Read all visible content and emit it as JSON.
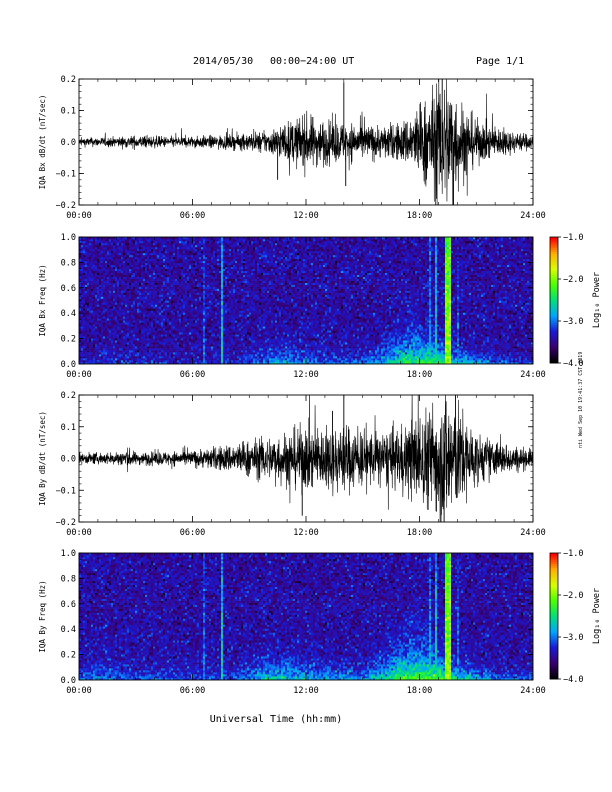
{
  "header": {
    "date_text": "2014/05/30",
    "range_text": "00:00−24:00 UT",
    "page_text": "Page 1/1"
  },
  "footer": {
    "xlabel": "Universal Time (hh:mm)",
    "side_stamp": "nti Wed Sep 10 19:41:37 CST 2019"
  },
  "colors": {
    "trace": "#000000",
    "colormap": [
      "#000000",
      "#3a0072",
      "#1a1ad6",
      "#00a6ff",
      "#00e07a",
      "#4cff00",
      "#d8ff00",
      "#ffb000",
      "#ff0000"
    ]
  },
  "chart_data": [
    {
      "type": "line",
      "title": "2014/05/30  00:00−24:00 UT",
      "ylabel": "IQA Bx dB/dt (nT/sec)",
      "xlabel": "",
      "xlim": [
        "00:00",
        "24:00"
      ],
      "ylim": [
        -0.2,
        0.2
      ],
      "x_ticks": [
        "00:00",
        "06:00",
        "12:00",
        "18:00",
        "24:00"
      ],
      "y_ticks": [
        "−0.2",
        "−0.1",
        "0.0",
        "0.1",
        "0.2"
      ],
      "y_tick_values": [
        -0.2,
        -0.1,
        0.0,
        0.1,
        0.2
      ],
      "envelope": {
        "x_hours": [
          0,
          2,
          3,
          5,
          6,
          8,
          9,
          10,
          11,
          12,
          13,
          14,
          15,
          16,
          17,
          17.5,
          18,
          18.5,
          19,
          19.5,
          20,
          21,
          22,
          23,
          24
        ],
        "amplitude": [
          0.012,
          0.014,
          0.018,
          0.015,
          0.016,
          0.02,
          0.025,
          0.032,
          0.055,
          0.075,
          0.06,
          0.055,
          0.05,
          0.045,
          0.055,
          0.075,
          0.105,
          0.13,
          0.17,
          0.2,
          0.13,
          0.06,
          0.045,
          0.03,
          0.02
        ]
      },
      "spikes": [
        {
          "x_hour": 14.0,
          "y": 0.19
        },
        {
          "x_hour": 14.1,
          "y": -0.14
        },
        {
          "x_hour": 10.5,
          "y": -0.12
        },
        {
          "x_hour": 19.2,
          "y": 0.2
        },
        {
          "x_hour": 19.8,
          "y": -0.2
        }
      ],
      "grid": false
    },
    {
      "type": "heatmap",
      "ylabel": "IQA Bx Freq (Hz)",
      "xlim": [
        "00:00",
        "24:00"
      ],
      "ylim": [
        0.0,
        1.0
      ],
      "x_ticks": [
        "00:00",
        "06:00",
        "12:00",
        "18:00",
        "24:00"
      ],
      "y_ticks": [
        "0.0",
        "0.2",
        "0.4",
        "0.6",
        "0.8",
        "1.0"
      ],
      "y_tick_values": [
        0.0,
        0.2,
        0.4,
        0.6,
        0.8,
        1.0
      ],
      "colorbar": {
        "label": "Log₁₀ Power",
        "range": [
          -4.0,
          -1.0
        ],
        "ticks": [
          "−1.0",
          "−2.0",
          "−3.0",
          "−4.0"
        ],
        "tick_values": [
          -1.0,
          -2.0,
          -3.0,
          -4.0
        ]
      },
      "background_level": -3.55,
      "low_freq_enhancement": {
        "x_hours": [
          0,
          3,
          6,
          8,
          9,
          10,
          11,
          12,
          13,
          15,
          16,
          17,
          18,
          19,
          20,
          22,
          24
        ],
        "level_at_0hz": [
          -3.3,
          -3.2,
          -3.3,
          -3.2,
          -3.05,
          -2.85,
          -2.75,
          -2.85,
          -2.95,
          -2.95,
          -2.7,
          -2.35,
          -2.25,
          -2.15,
          -2.5,
          -2.95,
          -3.1
        ],
        "decay_hz": [
          0.05,
          0.06,
          0.06,
          0.07,
          0.09,
          0.11,
          0.11,
          0.1,
          0.08,
          0.08,
          0.1,
          0.16,
          0.18,
          0.12,
          0.08,
          0.06,
          0.05
        ]
      },
      "vertical_streaks": [
        {
          "x_hour": 6.6,
          "level": -3.0
        },
        {
          "x_hour": 7.6,
          "level": -2.6
        },
        {
          "x_hour": 18.6,
          "level": -2.8
        },
        {
          "x_hour": 18.85,
          "level": -2.6
        },
        {
          "x_hour": 19.45,
          "level": -1.9
        },
        {
          "x_hour": 19.6,
          "level": -1.8
        },
        {
          "x_hour": 20.0,
          "level": -3.0
        }
      ]
    },
    {
      "type": "line",
      "ylabel": "IQA By dB/dt (nT/sec)",
      "xlim": [
        "00:00",
        "24:00"
      ],
      "ylim": [
        -0.2,
        0.2
      ],
      "x_ticks": [
        "00:00",
        "06:00",
        "12:00",
        "18:00",
        "24:00"
      ],
      "y_ticks": [
        "−0.2",
        "−0.1",
        "0.0",
        "0.1",
        "0.2"
      ],
      "y_tick_values": [
        -0.2,
        -0.1,
        0.0,
        0.1,
        0.2
      ],
      "envelope": {
        "x_hours": [
          0,
          2,
          2.5,
          3,
          5,
          6,
          7,
          8,
          9,
          10,
          11,
          12,
          13,
          14,
          15,
          16,
          17,
          17.5,
          18,
          18.5,
          19,
          19.5,
          20,
          21,
          22,
          23,
          24
        ],
        "amplitude": [
          0.015,
          0.017,
          0.03,
          0.017,
          0.02,
          0.022,
          0.03,
          0.04,
          0.05,
          0.06,
          0.075,
          0.09,
          0.085,
          0.095,
          0.08,
          0.075,
          0.085,
          0.11,
          0.13,
          0.14,
          0.17,
          0.2,
          0.15,
          0.07,
          0.05,
          0.035,
          0.025
        ]
      },
      "spikes": [
        {
          "x_hour": 14.0,
          "y": 0.2
        },
        {
          "x_hour": 11.8,
          "y": -0.18
        },
        {
          "x_hour": 13.4,
          "y": 0.15
        },
        {
          "x_hour": 19.3,
          "y": -0.2
        },
        {
          "x_hour": 19.9,
          "y": 0.2
        }
      ],
      "grid": false
    },
    {
      "type": "heatmap",
      "ylabel": "IQA By Freq (Hz)",
      "xlim": [
        "00:00",
        "24:00"
      ],
      "ylim": [
        0.0,
        1.0
      ],
      "x_ticks": [
        "00:00",
        "06:00",
        "12:00",
        "18:00",
        "24:00"
      ],
      "y_ticks": [
        "0.0",
        "0.2",
        "0.4",
        "0.6",
        "0.8",
        "1.0"
      ],
      "y_tick_values": [
        0.0,
        0.2,
        0.4,
        0.6,
        0.8,
        1.0
      ],
      "colorbar": {
        "label": "Log₁₀ Power",
        "range": [
          -4.0,
          -1.0
        ],
        "ticks": [
          "−1.0",
          "−2.0",
          "−3.0",
          "−4.0"
        ],
        "tick_values": [
          -1.0,
          -2.0,
          -3.0,
          -4.0
        ]
      },
      "background_level": -3.55,
      "low_freq_enhancement": {
        "x_hours": [
          0,
          1,
          2,
          3,
          4.5,
          6,
          8,
          9,
          10,
          11,
          12,
          13,
          15,
          16,
          17,
          18,
          19,
          20,
          22,
          24
        ],
        "level_at_0hz": [
          -3.0,
          -2.95,
          -3.0,
          -3.05,
          -3.0,
          -3.1,
          -3.05,
          -2.85,
          -2.6,
          -2.6,
          -2.7,
          -2.8,
          -2.85,
          -2.6,
          -2.2,
          -2.1,
          -2.0,
          -2.4,
          -2.9,
          -3.0
        ],
        "decay_hz": [
          0.12,
          0.14,
          0.12,
          0.1,
          0.1,
          0.09,
          0.09,
          0.11,
          0.14,
          0.13,
          0.11,
          0.1,
          0.1,
          0.14,
          0.2,
          0.22,
          0.15,
          0.1,
          0.07,
          0.06
        ]
      },
      "vertical_streaks": [
        {
          "x_hour": 6.6,
          "level": -2.9
        },
        {
          "x_hour": 7.6,
          "level": -2.6
        },
        {
          "x_hour": 18.6,
          "level": -2.8
        },
        {
          "x_hour": 18.85,
          "level": -2.6
        },
        {
          "x_hour": 19.45,
          "level": -1.9
        },
        {
          "x_hour": 19.6,
          "level": -1.8
        },
        {
          "x_hour": 20.0,
          "level": -2.9
        }
      ]
    }
  ]
}
